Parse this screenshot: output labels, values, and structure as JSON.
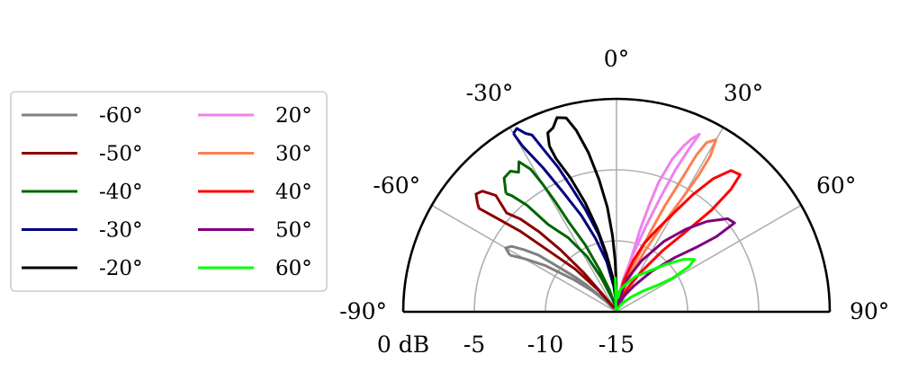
{
  "chart_data": {
    "type": "polar-line",
    "theta_range_deg": [
      -90,
      90
    ],
    "theta_ticks": [
      -90,
      -60,
      -30,
      0,
      30,
      60,
      90
    ],
    "theta_tick_labels": [
      "-90°",
      "-60°",
      "-30°",
      "0°",
      "30°",
      "60°",
      "90°"
    ],
    "r_ticks_db": [
      0,
      -5,
      -10,
      -15
    ],
    "r_tick_labels": [
      "0 dB",
      "-5",
      "-10",
      "-15"
    ],
    "r_range_db": [
      -15,
      0
    ],
    "grid": true,
    "legend": {
      "position": "left",
      "columns": 2
    },
    "series": [
      {
        "name": "-60°",
        "color": "#808080",
        "points": [
          [
            -62,
            -6.5
          ],
          [
            -60,
            -6.0
          ],
          [
            -58,
            -6.3
          ],
          [
            -56,
            -7.2
          ],
          [
            -54,
            -8.2
          ],
          [
            -52,
            -10.0
          ],
          [
            -50,
            -11.2
          ],
          [
            -48,
            -12.2
          ],
          [
            -46,
            -13.4
          ],
          [
            -44,
            -14.4
          ],
          [
            -40,
            -14.7
          ],
          [
            -45,
            -14.0
          ],
          [
            -49,
            -12.8
          ],
          [
            -53,
            -11.2
          ],
          [
            -57,
            -9.0
          ],
          [
            -60,
            -7.5
          ],
          [
            -62,
            -6.5
          ]
        ]
      },
      {
        "name": "-50°",
        "color": "#8b0000",
        "points": [
          [
            -52,
            -2.6
          ],
          [
            -50,
            -2.1
          ],
          [
            -48,
            -2.3
          ],
          [
            -46,
            -3.2
          ],
          [
            -48,
            -4.6
          ],
          [
            -46,
            -5.6
          ],
          [
            -44,
            -7.2
          ],
          [
            -42,
            -9.2
          ],
          [
            -40,
            -11.4
          ],
          [
            -38,
            -13.6
          ],
          [
            -35,
            -14.6
          ],
          [
            -40,
            -13.0
          ],
          [
            -44,
            -10.8
          ],
          [
            -48,
            -8.6
          ],
          [
            -50,
            -6.2
          ],
          [
            -52,
            -4.2
          ],
          [
            -53,
            -2.9
          ],
          [
            -52,
            -2.6
          ]
        ]
      },
      {
        "name": "-40°",
        "color": "#006400",
        "points": [
          [
            -43,
            -3.6
          ],
          [
            -40,
            -2.7
          ],
          [
            -37,
            -2.6
          ],
          [
            -35,
            -3.0
          ],
          [
            -33,
            -2.4
          ],
          [
            -31,
            -3.3
          ],
          [
            -30,
            -4.6
          ],
          [
            -29,
            -6.2
          ],
          [
            -28,
            -7.8
          ],
          [
            -25,
            -9.8
          ],
          [
            -22,
            -11.8
          ],
          [
            -18,
            -13.3
          ],
          [
            -12,
            -14.6
          ],
          [
            -18,
            -14.0
          ],
          [
            -24,
            -12.4
          ],
          [
            -28,
            -10.6
          ],
          [
            -33,
            -8.8
          ],
          [
            -38,
            -7.2
          ],
          [
            -40,
            -5.2
          ],
          [
            -42,
            -4.0
          ],
          [
            -43,
            -3.6
          ]
        ]
      },
      {
        "name": "-30°",
        "color": "#00007f",
        "points": [
          [
            -30,
            -0.5
          ],
          [
            -28.5,
            -0.3
          ],
          [
            -27,
            -0.9
          ],
          [
            -25.5,
            -1.2
          ],
          [
            -24,
            -2.6
          ],
          [
            -22,
            -4.0
          ],
          [
            -20,
            -5.6
          ],
          [
            -17,
            -7.4
          ],
          [
            -13,
            -9.4
          ],
          [
            -9,
            -11.4
          ],
          [
            -5,
            -13.0
          ],
          [
            -2,
            -14.4
          ],
          [
            -6,
            -13.2
          ],
          [
            -11,
            -11.4
          ],
          [
            -16,
            -9.6
          ],
          [
            -20,
            -7.8
          ],
          [
            -24,
            -5.8
          ],
          [
            -27,
            -3.6
          ],
          [
            -29.5,
            -1.6
          ],
          [
            -30,
            -0.5
          ]
        ]
      },
      {
        "name": "-20°",
        "color": "#000000",
        "points": [
          [
            -22,
            -2.4
          ],
          [
            -21,
            -1.5
          ],
          [
            -19,
            -1.3
          ],
          [
            -17,
            -0.7
          ],
          [
            -14.5,
            -0.9
          ],
          [
            -12.5,
            -1.9
          ],
          [
            -10,
            -3.6
          ],
          [
            -7.5,
            -5.6
          ],
          [
            -5,
            -7.6
          ],
          [
            -3,
            -9.6
          ],
          [
            -1.5,
            -11.4
          ],
          [
            -0.5,
            -13.0
          ],
          [
            -0.2,
            -14.6
          ],
          [
            -3,
            -14.0
          ],
          [
            -6,
            -12.6
          ],
          [
            -10,
            -10.8
          ],
          [
            -13,
            -9.0
          ],
          [
            -16,
            -7.0
          ],
          [
            -19,
            -5.0
          ],
          [
            -21.5,
            -3.4
          ],
          [
            -22,
            -2.4
          ]
        ]
      },
      {
        "name": "20°",
        "color": "#ee82ee",
        "points": [
          [
            15,
            -11.6
          ],
          [
            16,
            -9.0
          ],
          [
            17,
            -7.2
          ],
          [
            18,
            -5.4
          ],
          [
            20,
            -3.6
          ],
          [
            22,
            -2.4
          ],
          [
            23.5,
            -1.7
          ],
          [
            25,
            -1.2
          ],
          [
            24,
            -2.4
          ],
          [
            22.5,
            -4.2
          ],
          [
            21,
            -6.4
          ],
          [
            19,
            -8.6
          ],
          [
            16,
            -10.8
          ],
          [
            12,
            -12.6
          ],
          [
            8,
            -13.8
          ],
          [
            4,
            -14.6
          ],
          [
            8,
            -14.0
          ],
          [
            12,
            -13.0
          ],
          [
            15,
            -11.6
          ]
        ]
      },
      {
        "name": "30°",
        "color": "#ff7f50",
        "points": [
          [
            20,
            -11.4
          ],
          [
            23,
            -8.8
          ],
          [
            24.5,
            -6.8
          ],
          [
            26,
            -4.8
          ],
          [
            27,
            -2.6
          ],
          [
            28,
            -1.5
          ],
          [
            30,
            -1.0
          ],
          [
            31,
            -2.2
          ],
          [
            31,
            -3.8
          ],
          [
            30,
            -5.8
          ],
          [
            28,
            -8.0
          ],
          [
            25,
            -10.2
          ],
          [
            20,
            -12.6
          ],
          [
            12,
            -14.2
          ],
          [
            4,
            -14.8
          ],
          [
            12,
            -13.6
          ],
          [
            20,
            -11.4
          ]
        ]
      },
      {
        "name": "40°",
        "color": "#ff0000",
        "points": [
          [
            13,
            -12.8
          ],
          [
            18,
            -11.2
          ],
          [
            22,
            -9.8
          ],
          [
            26,
            -8.6
          ],
          [
            30,
            -7.0
          ],
          [
            33,
            -5.2
          ],
          [
            36,
            -3.4
          ],
          [
            39,
            -2.2
          ],
          [
            42,
            -2.0
          ],
          [
            43,
            -3.2
          ],
          [
            43,
            -5.2
          ],
          [
            41,
            -7.4
          ],
          [
            37,
            -9.6
          ],
          [
            32,
            -11.6
          ],
          [
            26,
            -13.0
          ],
          [
            18,
            -14.0
          ],
          [
            8,
            -14.7
          ],
          [
            13,
            -12.8
          ]
        ]
      },
      {
        "name": "50°",
        "color": "#800080",
        "points": [
          [
            12,
            -14.0
          ],
          [
            18,
            -12.6
          ],
          [
            26,
            -11.0
          ],
          [
            34,
            -9.0
          ],
          [
            40,
            -7.4
          ],
          [
            45,
            -6.0
          ],
          [
            50,
            -4.8
          ],
          [
            53,
            -4.6
          ],
          [
            53,
            -6.2
          ],
          [
            51,
            -7.8
          ],
          [
            47,
            -9.4
          ],
          [
            41,
            -11.2
          ],
          [
            34,
            -12.8
          ],
          [
            25,
            -13.8
          ],
          [
            15,
            -14.6
          ],
          [
            8,
            -14.8
          ],
          [
            12,
            -14.0
          ]
        ]
      },
      {
        "name": "60°",
        "color": "#00ff00",
        "points": [
          [
            -6,
            -14.6
          ],
          [
            -2,
            -12.6
          ],
          [
            -1,
            -13.8
          ],
          [
            3,
            -13.6
          ],
          [
            6,
            -14.0
          ],
          [
            10,
            -13.4
          ],
          [
            18,
            -13.0
          ],
          [
            28,
            -12.2
          ],
          [
            38,
            -11.4
          ],
          [
            46,
            -10.2
          ],
          [
            52,
            -9.0
          ],
          [
            56,
            -8.4
          ],
          [
            58,
            -9.0
          ],
          [
            59,
            -10.4
          ],
          [
            57,
            -11.6
          ],
          [
            52,
            -12.6
          ],
          [
            44,
            -13.6
          ],
          [
            34,
            -14.3
          ],
          [
            22,
            -14.7
          ],
          [
            8,
            -14.9
          ],
          [
            -6,
            -14.6
          ]
        ]
      }
    ]
  }
}
